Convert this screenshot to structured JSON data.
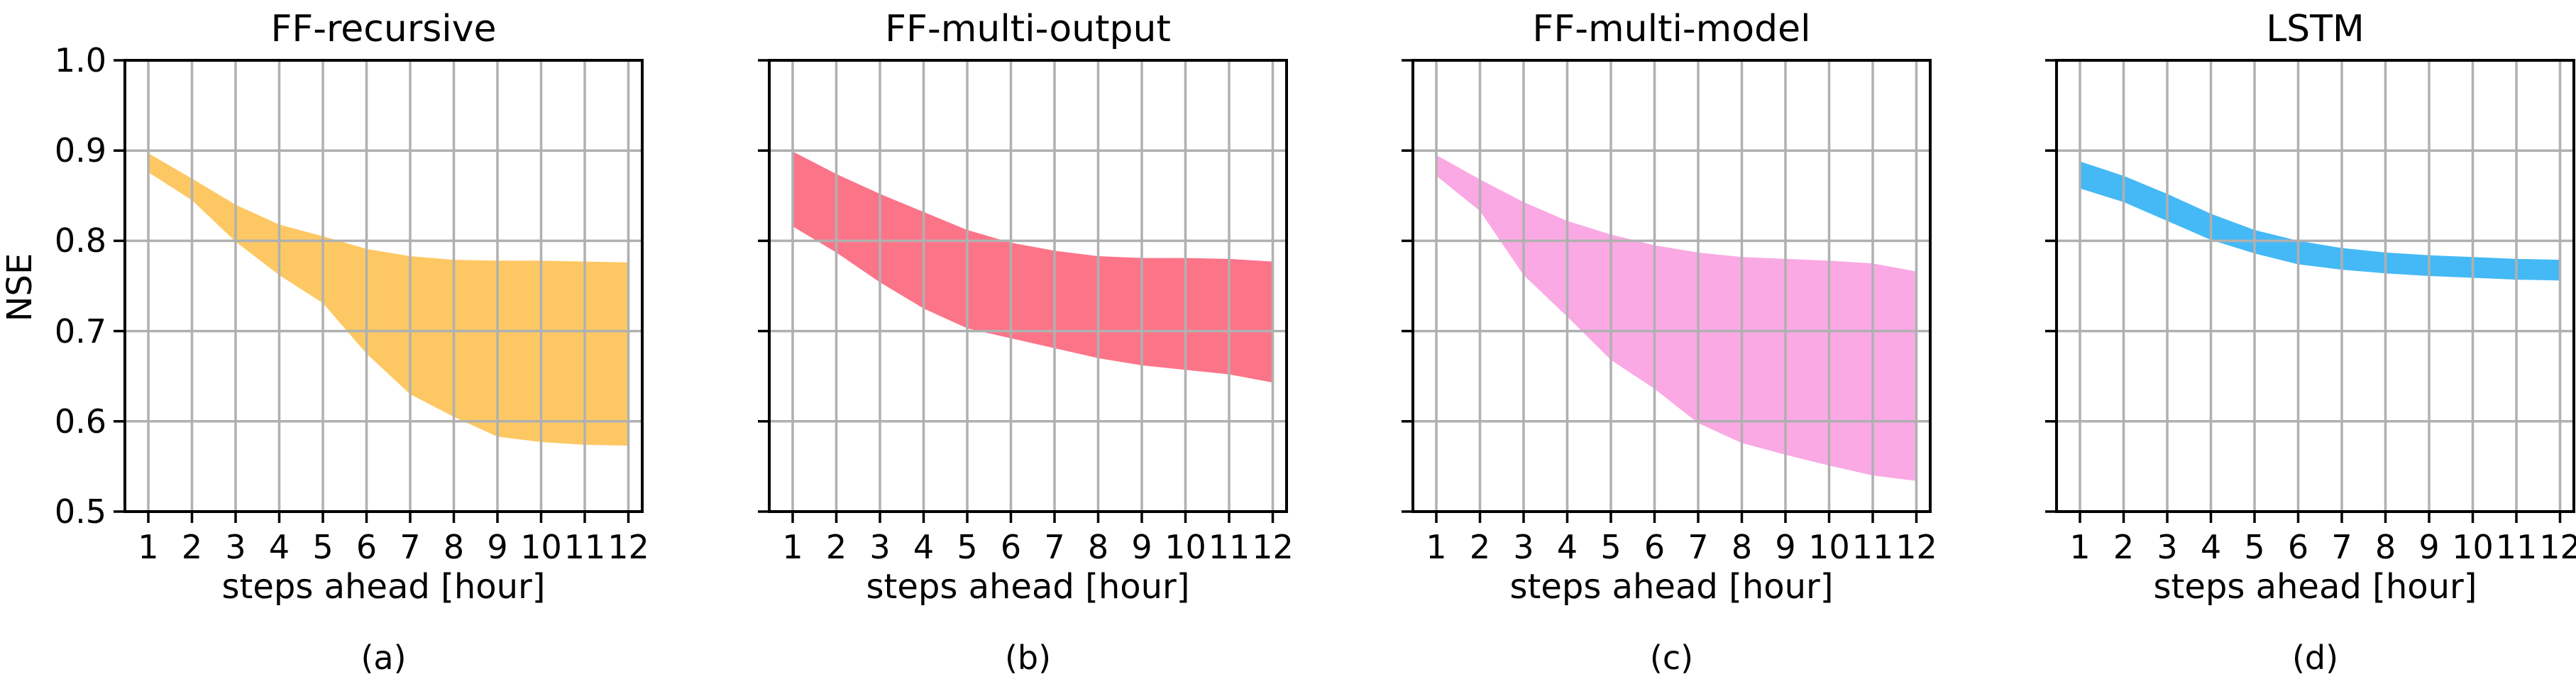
{
  "figure": {
    "ylabel": "NSE",
    "background_color": "#ffffff",
    "grid_color": "#b0b0b0",
    "spine_color": "#000000",
    "text_color": "#000000",
    "grid": true,
    "legend": "none"
  },
  "chart_data": [
    {
      "type": "area",
      "title": "FF-recursive",
      "caption": "(a)",
      "xlabel": "steps ahead [hour]",
      "ylabel": "NSE",
      "band_color": "#FDC863",
      "x": [
        1,
        2,
        3,
        4,
        5,
        6,
        7,
        8,
        9,
        10,
        11,
        12
      ],
      "xtick_labels": [
        "1",
        "2",
        "3",
        "4",
        "5",
        "6",
        "7",
        "8",
        "9",
        "10",
        "11",
        "12"
      ],
      "yticks": [
        0.5,
        0.6,
        0.7,
        0.8,
        0.9,
        1.0
      ],
      "ytick_labels": [
        "0.5",
        "0.6",
        "0.7",
        "0.8",
        "0.9",
        "1.0"
      ],
      "show_ytick_labels": true,
      "ylim": [
        0.5,
        1.0
      ],
      "band_upper": [
        0.897,
        0.869,
        0.84,
        0.818,
        0.805,
        0.791,
        0.783,
        0.779,
        0.778,
        0.778,
        0.777,
        0.776
      ],
      "band_lower": [
        0.876,
        0.845,
        0.799,
        0.762,
        0.731,
        0.675,
        0.63,
        0.605,
        0.583,
        0.577,
        0.574,
        0.573
      ]
    },
    {
      "type": "area",
      "title": "FF-multi-output",
      "caption": "(b)",
      "xlabel": "steps ahead [hour]",
      "ylabel": "NSE",
      "band_color": "#FC7488",
      "x": [
        1,
        2,
        3,
        4,
        5,
        6,
        7,
        8,
        9,
        10,
        11,
        12
      ],
      "xtick_labels": [
        "1",
        "2",
        "3",
        "4",
        "5",
        "6",
        "7",
        "8",
        "9",
        "10",
        "11",
        "12"
      ],
      "yticks": [
        0.5,
        0.6,
        0.7,
        0.8,
        0.9,
        1.0
      ],
      "ytick_labels": [
        "0.5",
        "0.6",
        "0.7",
        "0.8",
        "0.9",
        "1.0"
      ],
      "show_ytick_labels": false,
      "ylim": [
        0.5,
        1.0
      ],
      "band_upper": [
        0.899,
        0.874,
        0.852,
        0.832,
        0.812,
        0.798,
        0.789,
        0.783,
        0.781,
        0.781,
        0.78,
        0.777
      ],
      "band_lower": [
        0.816,
        0.787,
        0.754,
        0.725,
        0.703,
        0.692,
        0.681,
        0.67,
        0.662,
        0.657,
        0.652,
        0.643
      ]
    },
    {
      "type": "area",
      "title": "FF-multi-model",
      "caption": "(c)",
      "xlabel": "steps ahead [hour]",
      "ylabel": "NSE",
      "band_color": "#FAA9E4",
      "x": [
        1,
        2,
        3,
        4,
        5,
        6,
        7,
        8,
        9,
        10,
        11,
        12
      ],
      "xtick_labels": [
        "1",
        "2",
        "3",
        "4",
        "5",
        "6",
        "7",
        "8",
        "9",
        "10",
        "11",
        "12"
      ],
      "yticks": [
        0.5,
        0.6,
        0.7,
        0.8,
        0.9,
        1.0
      ],
      "ytick_labels": [
        "0.5",
        "0.6",
        "0.7",
        "0.8",
        "0.9",
        "1.0"
      ],
      "show_ytick_labels": false,
      "ylim": [
        0.5,
        1.0
      ],
      "band_upper": [
        0.895,
        0.868,
        0.843,
        0.822,
        0.807,
        0.795,
        0.787,
        0.782,
        0.78,
        0.778,
        0.775,
        0.766
      ],
      "band_lower": [
        0.872,
        0.833,
        0.762,
        0.716,
        0.668,
        0.636,
        0.598,
        0.576,
        0.563,
        0.551,
        0.54,
        0.534
      ]
    },
    {
      "type": "area",
      "title": "LSTM",
      "caption": "(d)",
      "xlabel": "steps ahead [hour]",
      "ylabel": "NSE",
      "band_color": "#45B9F5",
      "x": [
        1,
        2,
        3,
        4,
        5,
        6,
        7,
        8,
        9,
        10,
        11,
        12
      ],
      "xtick_labels": [
        "1",
        "2",
        "3",
        "4",
        "5",
        "6",
        "7",
        "8",
        "9",
        "10",
        "11",
        "12"
      ],
      "yticks": [
        0.5,
        0.6,
        0.7,
        0.8,
        0.9,
        1.0
      ],
      "ytick_labels": [
        "0.5",
        "0.6",
        "0.7",
        "0.8",
        "0.9",
        "1.0"
      ],
      "show_ytick_labels": false,
      "ylim": [
        0.5,
        1.0
      ],
      "band_upper": [
        0.888,
        0.872,
        0.852,
        0.83,
        0.812,
        0.8,
        0.792,
        0.787,
        0.784,
        0.782,
        0.78,
        0.779
      ],
      "band_lower": [
        0.858,
        0.843,
        0.822,
        0.801,
        0.786,
        0.774,
        0.768,
        0.764,
        0.761,
        0.759,
        0.757,
        0.756
      ]
    }
  ]
}
